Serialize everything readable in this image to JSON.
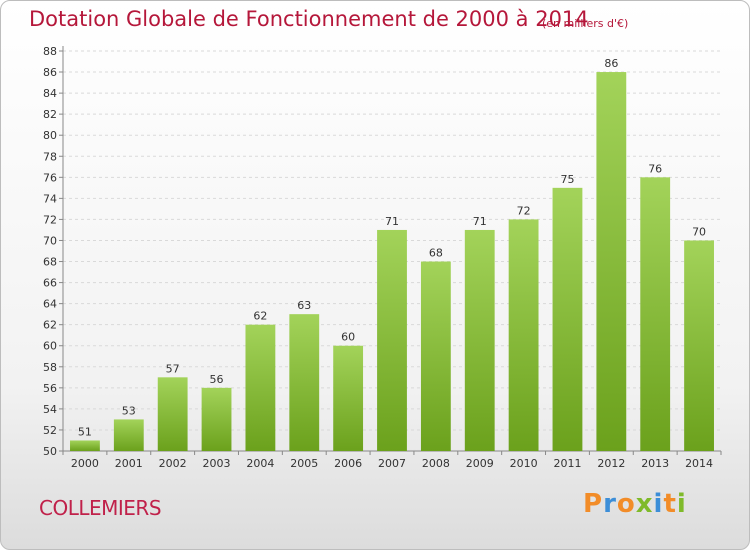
{
  "header": {
    "title": "Dotation Globale de Fonctionnement de 2000 à 2014",
    "unit": "(en milliers d'€)"
  },
  "footer": {
    "commune": "COLLEMIERS",
    "logo": "Proxiti"
  },
  "colors": {
    "bar_top": "#a3d35a",
    "bar_bottom": "#6ba11c",
    "title": "#b5173a",
    "logo": [
      "#f28c28",
      "#3c8ed8",
      "#f28c28",
      "#7fba2a",
      "#3c8ed8",
      "#f28c28",
      "#7fba2a"
    ]
  },
  "chart_data": {
    "type": "bar",
    "categories": [
      "2000",
      "2001",
      "2002",
      "2003",
      "2004",
      "2005",
      "2006",
      "2007",
      "2008",
      "2009",
      "2010",
      "2011",
      "2012",
      "2013",
      "2014"
    ],
    "values": [
      51,
      53,
      57,
      56,
      62,
      63,
      60,
      71,
      68,
      71,
      72,
      75,
      86,
      76,
      70
    ],
    "ylim": [
      50,
      88
    ],
    "yticks": [
      50,
      52,
      54,
      56,
      58,
      60,
      62,
      64,
      66,
      68,
      70,
      72,
      74,
      76,
      78,
      80,
      82,
      84,
      86,
      88
    ],
    "grid": true,
    "data_labels": true
  }
}
